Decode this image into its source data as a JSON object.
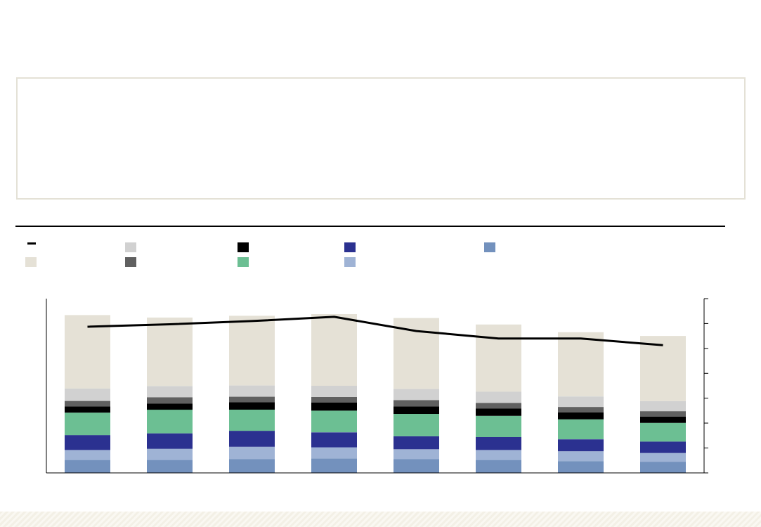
{
  "chart_data": {
    "type": "bar",
    "stacked": true,
    "title": "",
    "xlabel": "",
    "ylabel": "",
    "categories": [
      "",
      "",
      "",
      "",
      "",
      "",
      "",
      ""
    ],
    "ylim": [
      0,
      7
    ],
    "y2lim": [
      0,
      7
    ],
    "grid": false,
    "legend_position": "top-left",
    "series": [
      {
        "color": "#7391bd",
        "values": [
          0.52,
          0.52,
          0.55,
          0.58,
          0.55,
          0.52,
          0.47,
          0.45
        ]
      },
      {
        "color": "#9fb3d5",
        "values": [
          0.4,
          0.45,
          0.5,
          0.45,
          0.4,
          0.4,
          0.4,
          0.35
        ]
      },
      {
        "color": "#2b3190",
        "values": [
          0.6,
          0.62,
          0.64,
          0.6,
          0.52,
          0.52,
          0.48,
          0.46
        ]
      },
      {
        "color": "#6cbf93",
        "values": [
          0.9,
          0.95,
          0.85,
          0.87,
          0.9,
          0.85,
          0.8,
          0.75
        ]
      },
      {
        "color": "#000000",
        "values": [
          0.25,
          0.25,
          0.3,
          0.33,
          0.3,
          0.3,
          0.28,
          0.25
        ]
      },
      {
        "color": "#606060",
        "values": [
          0.22,
          0.25,
          0.22,
          0.22,
          0.25,
          0.22,
          0.22,
          0.22
        ]
      },
      {
        "color": "#d1d1d1",
        "values": [
          0.5,
          0.45,
          0.45,
          0.45,
          0.45,
          0.45,
          0.42,
          0.4
        ]
      },
      {
        "color": "#e5e1d6",
        "values": [
          2.95,
          2.75,
          2.8,
          2.88,
          2.85,
          2.7,
          2.58,
          2.62
        ]
      }
    ],
    "line": {
      "color": "#000000",
      "values": [
        5.87,
        5.97,
        6.1,
        6.27,
        5.7,
        5.4,
        5.4,
        5.13
      ]
    }
  }
}
